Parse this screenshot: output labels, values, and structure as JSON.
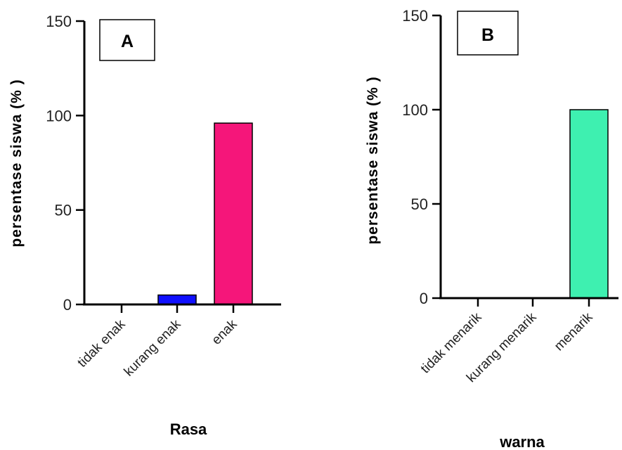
{
  "chart_data": [
    {
      "type": "bar",
      "panel_label": "A",
      "categories": [
        "tidak enak",
        "kurang enak",
        "enak"
      ],
      "values": [
        0,
        5,
        96
      ],
      "colors": [
        "#1010ff",
        "#1010ff",
        "#f5167a"
      ],
      "xlabel": "Rasa",
      "ylabel": "persentase siswa (% )",
      "ylim": [
        0,
        150
      ],
      "yticks": [
        0,
        50,
        100,
        150
      ]
    },
    {
      "type": "bar",
      "panel_label": "B",
      "categories": [
        "tidak menarik",
        "kurang menarik",
        "menarik"
      ],
      "values": [
        0,
        0,
        100
      ],
      "colors": [
        "#3ef0b0",
        "#3ef0b0",
        "#3ef0b0"
      ],
      "xlabel": "warna",
      "ylabel": "persentase siswa (% )",
      "ylim": [
        0,
        150
      ],
      "yticks": [
        0,
        50,
        100,
        150
      ]
    }
  ]
}
